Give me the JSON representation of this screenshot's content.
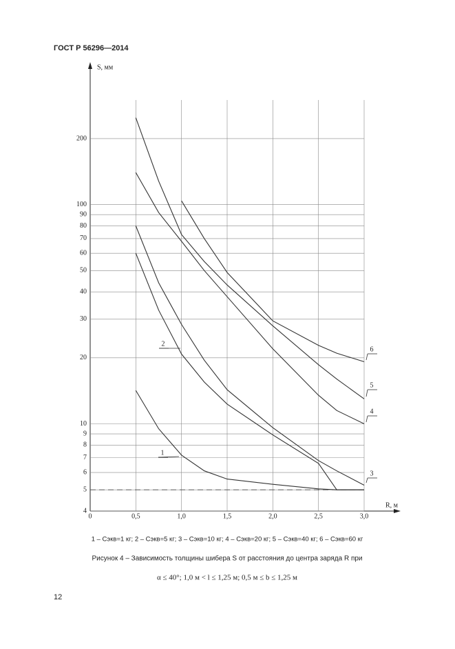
{
  "header": {
    "title": "ГОСТ Р 56296—2014"
  },
  "chart_data": {
    "type": "line",
    "y_label": "S, мм",
    "x_label": "R, м",
    "x": [
      0.5,
      0.75,
      1.0,
      1.25,
      1.5,
      2.0,
      2.5,
      2.7,
      3.0
    ],
    "series": [
      {
        "name": "1",
        "color": "#333333",
        "values": [
          14.2,
          9.5,
          7.2,
          6.1,
          5.6,
          5.3,
          5.05,
          5,
          5
        ]
      },
      {
        "name": "2",
        "color": "#333333",
        "values": [
          60,
          33,
          20.8,
          15.5,
          12.3,
          8.9,
          6.6,
          5,
          5
        ]
      },
      {
        "name": "3",
        "color": "#333333",
        "values": [
          80,
          44,
          28.4,
          19.5,
          14.3,
          9.6,
          6.8,
          6.1,
          5.25
        ]
      },
      {
        "name": "4",
        "color": "#333333",
        "values": [
          140,
          92,
          68,
          50,
          38,
          22,
          13.5,
          11.5,
          10
        ]
      },
      {
        "name": "5",
        "color": "#333333",
        "values": [
          249,
          128,
          73,
          55,
          43,
          28,
          18.6,
          16,
          13
        ]
      },
      {
        "name": "6",
        "color": "#333333",
        "values": [
          null,
          null,
          104,
          70,
          49,
          29.5,
          22.8,
          21,
          19.2
        ]
      }
    ],
    "xlim": [
      0,
      3.0
    ],
    "ylim": [
      4,
      300
    ],
    "ylog": true,
    "grid": true,
    "hline": 5,
    "xticks": [
      0,
      {
        "value": 0.5,
        "label": "0,5"
      },
      {
        "value": 1.0,
        "label": "1,0"
      },
      {
        "value": 1.5,
        "label": "1,5"
      },
      {
        "value": 2.0,
        "label": "2,0"
      },
      {
        "value": 2.5,
        "label": "2,5"
      },
      {
        "value": 3.0,
        "label": "3,0"
      }
    ],
    "yticks": [
      4,
      5,
      6,
      7,
      8,
      9,
      10,
      20,
      30,
      40,
      50,
      60,
      70,
      80,
      90,
      100,
      200
    ]
  },
  "legend_text": "1 – Cэкв=1 кг; 2 – Cэкв=5 кг; 3 – Cэкв=10 кг; 4 – Cэкв=20 кг; 5 – Cэкв=40 кг; 6 – Cэкв=60 кг",
  "caption": "Рисунок 4 – Зависимость толщины шибера S от расстояния до центра заряда R при",
  "formula": "α ≤ 40°; 1,0 м < l ≤ 1,25 м; 0,5 м ≤ b ≤ 1,25 м",
  "page_number": "12"
}
